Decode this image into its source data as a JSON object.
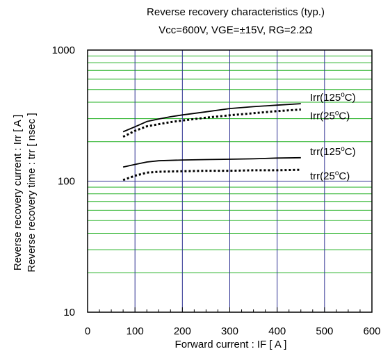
{
  "chart_data": {
    "type": "line",
    "title": "Reverse recovery characteristics (typ.)",
    "subtitle": "Vcc=600V, VGE=±15V, RG=2.2Ω",
    "xlabel": "Forward current : IF [ A ]",
    "ylabel": [
      "Reverse recovery current : Irr [ A ]",
      "Reverse recovery time : trr [ nsec ]"
    ],
    "xlim": [
      0,
      600
    ],
    "ylim": [
      10,
      1000
    ],
    "y_scale": "log",
    "x_ticks": [
      0,
      100,
      200,
      300,
      400,
      500,
      600
    ],
    "y_ticks": [
      10,
      100,
      1000
    ],
    "grid": true,
    "colors": {
      "major_grid": "#2e3192",
      "minor_grid": "#22b022",
      "line": "#000000"
    },
    "series": [
      {
        "name": "Irr(125°C)",
        "name_base": "Irr(125",
        "name_sup": "o",
        "name_tail": "C)",
        "dash": "solid",
        "x": [
          75,
          100,
          125,
          150,
          175,
          200,
          250,
          300,
          350,
          400,
          450
        ],
        "y": [
          238,
          260,
          285,
          298,
          310,
          320,
          338,
          358,
          370,
          380,
          390
        ]
      },
      {
        "name": "Irr(25°C)",
        "name_base": "Irr(25",
        "name_sup": "o",
        "name_tail": "C)",
        "dash": "dotted",
        "x": [
          75,
          100,
          125,
          150,
          175,
          200,
          250,
          300,
          350,
          400,
          450
        ],
        "y": [
          218,
          242,
          262,
          272,
          282,
          290,
          305,
          318,
          330,
          342,
          352
        ]
      },
      {
        "name": "trr(125°C)",
        "name_base": "trr(125",
        "name_sup": "o",
        "name_tail": "C)",
        "dash": "solid",
        "x": [
          75,
          100,
          125,
          150,
          200,
          250,
          300,
          350,
          400,
          450
        ],
        "y": [
          128,
          134,
          140,
          143,
          145,
          146,
          147,
          148,
          150,
          151
        ]
      },
      {
        "name": "trr(25°C)",
        "name_base": "trr(25",
        "name_sup": "o",
        "name_tail": "C)",
        "dash": "dotted",
        "x": [
          75,
          100,
          125,
          150,
          200,
          250,
          300,
          350,
          400,
          450
        ],
        "y": [
          102,
          110,
          116,
          118,
          119,
          120,
          120,
          121,
          121,
          122
        ]
      }
    ]
  }
}
